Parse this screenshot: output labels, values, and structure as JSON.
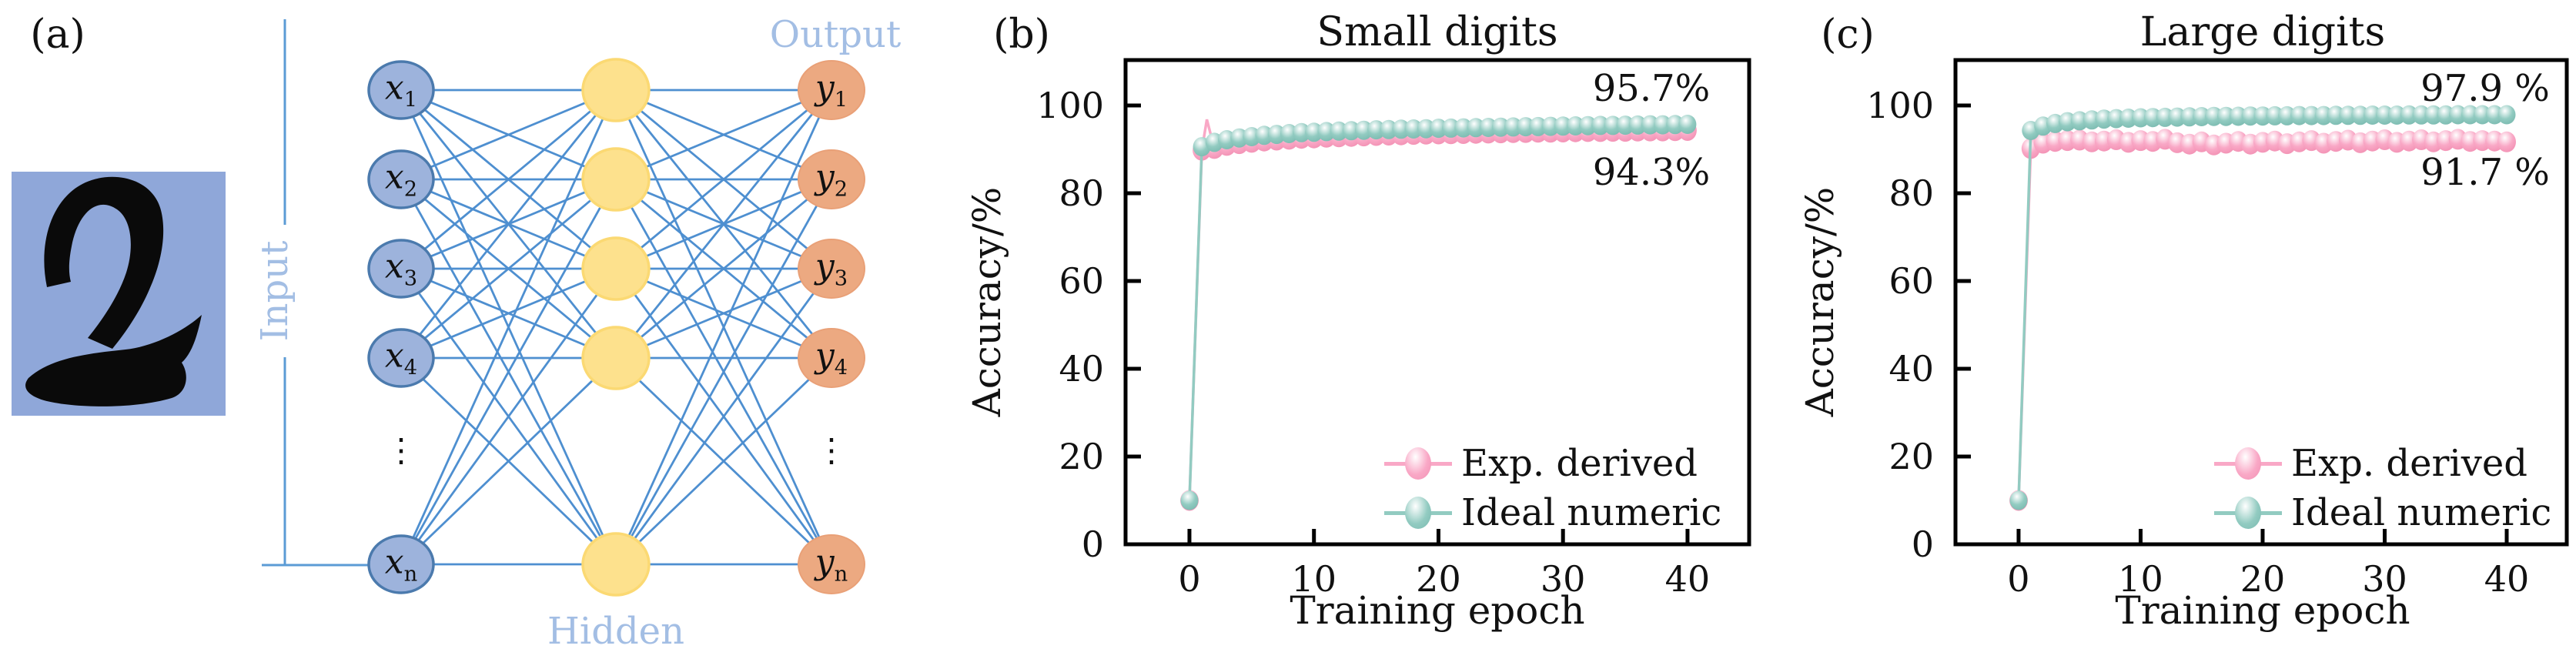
{
  "panel_a": {
    "label": "(a)",
    "digit": "2",
    "ellipsis": "⋮",
    "layer_labels": {
      "input": "Input",
      "hidden": "Hidden",
      "output": "Output"
    },
    "input_nodes": [
      {
        "var": "x",
        "sub": "1"
      },
      {
        "var": "x",
        "sub": "2"
      },
      {
        "var": "x",
        "sub": "3"
      },
      {
        "var": "x",
        "sub": "4"
      },
      {
        "var": "x",
        "sub": "n"
      }
    ],
    "output_nodes": [
      {
        "var": "y",
        "sub": "1"
      },
      {
        "var": "y",
        "sub": "2"
      },
      {
        "var": "y",
        "sub": "3"
      },
      {
        "var": "y",
        "sub": "4"
      },
      {
        "var": "y",
        "sub": "n"
      }
    ],
    "colors": {
      "digit_bg": "#8FA7D9",
      "digit_ink": "#0A0A0A",
      "edge_line": "#4E8FD0",
      "input_fill": "#9DB3DC",
      "input_stroke": "#4B7AAD",
      "hidden_fill": "#FDE18D",
      "hidden_stroke": "#FBD973",
      "output_fill": "#ECA981",
      "output_stroke": "#E9A077",
      "layer_text": "#A3BEE4",
      "bracket_line": "#5B9BD5"
    }
  },
  "chart_data": [
    {
      "panel_label": "(b)",
      "type": "line",
      "title": "Small digits",
      "xlabel": "Training epoch",
      "ylabel": "Accuracy/%",
      "x_ticks": [
        0,
        10,
        20,
        30,
        40
      ],
      "y_ticks": [
        0,
        20,
        40,
        60,
        80,
        100
      ],
      "xlim": [
        -5.13,
        44.95
      ],
      "ylim": [
        0,
        110.35
      ],
      "grid": false,
      "legend_position": "lower right",
      "annotations": [
        {
          "text": "95.7%",
          "series": "Ideal numeric",
          "x": 37,
          "y": 106
        },
        {
          "text": "94.3%",
          "series": "Exp. derived",
          "x": 37,
          "y": 84.5
        }
      ],
      "series": [
        {
          "name": "Exp. derived",
          "color": "#F9A8C6",
          "color_dark": "#F28FB2",
          "x": [
            0,
            1,
            1.4,
            2,
            3,
            4,
            5,
            6,
            7,
            8,
            9,
            10,
            11,
            12,
            13,
            14,
            15,
            16,
            17,
            18,
            19,
            20,
            21,
            22,
            23,
            24,
            25,
            26,
            27,
            28,
            29,
            30,
            31,
            32,
            33,
            34,
            35,
            36,
            37,
            38,
            39,
            40
          ],
          "y": [
            10,
            89.8,
            96.8,
            90.2,
            90.9,
            91.3,
            91.6,
            91.9,
            92.1,
            92.3,
            92.5,
            92.6,
            92.75,
            92.85,
            92.95,
            93.05,
            93.15,
            93.25,
            93.3,
            93.4,
            93.45,
            93.5,
            93.55,
            93.6,
            93.65,
            93.7,
            93.75,
            93.8,
            93.85,
            93.9,
            93.9,
            93.95,
            94.0,
            94.05,
            94.05,
            94.1,
            94.1,
            94.15,
            94.2,
            94.2,
            94.25,
            94.3
          ]
        },
        {
          "name": "Ideal numeric",
          "color": "#92CBC1",
          "color_dark": "#79B9AF",
          "x": [
            0,
            1,
            2,
            3,
            4,
            5,
            6,
            7,
            8,
            9,
            10,
            11,
            12,
            13,
            14,
            15,
            16,
            17,
            18,
            19,
            20,
            21,
            22,
            23,
            24,
            25,
            26,
            27,
            28,
            29,
            30,
            31,
            32,
            33,
            34,
            35,
            36,
            37,
            38,
            39,
            40
          ],
          "y": [
            10,
            90.6,
            91.6,
            92.2,
            92.6,
            92.9,
            93.2,
            93.4,
            93.6,
            93.8,
            93.9,
            94.05,
            94.15,
            94.25,
            94.35,
            94.45,
            94.5,
            94.6,
            94.65,
            94.7,
            94.8,
            94.85,
            94.9,
            94.95,
            95.0,
            95.05,
            95.1,
            95.15,
            95.2,
            95.25,
            95.3,
            95.35,
            95.4,
            95.45,
            95.45,
            95.5,
            95.55,
            95.6,
            95.6,
            95.65,
            95.7
          ]
        }
      ]
    },
    {
      "panel_label": "(c)",
      "type": "line",
      "title": "Large digits",
      "xlabel": "Training epoch",
      "ylabel": "Accuracy/%",
      "x_ticks": [
        0,
        10,
        20,
        30,
        40
      ],
      "y_ticks": [
        0,
        20,
        40,
        60,
        80,
        100
      ],
      "xlim": [
        -5.17,
        44.92
      ],
      "ylim": [
        0,
        110.35
      ],
      "grid": false,
      "legend_position": "lower right",
      "annotations": [
        {
          "text": "97.9 %",
          "series": "Ideal numeric",
          "x": 37,
          "y": 106
        },
        {
          "text": "91.7 %",
          "series": "Exp. derived",
          "x": 37,
          "y": 84.5
        }
      ],
      "series": [
        {
          "name": "Exp. derived",
          "color": "#F9A8C6",
          "color_dark": "#F28FB2",
          "x": [
            0,
            1,
            2,
            3,
            4,
            5,
            6,
            7,
            8,
            9,
            10,
            11,
            12,
            13,
            14,
            15,
            16,
            17,
            18,
            19,
            20,
            21,
            22,
            23,
            24,
            25,
            26,
            27,
            28,
            29,
            30,
            31,
            32,
            33,
            34,
            35,
            36,
            37,
            38,
            39,
            40
          ],
          "y": [
            10,
            90.2,
            91.4,
            91.8,
            92.0,
            92.1,
            91.7,
            91.9,
            92.2,
            91.6,
            92.0,
            91.8,
            92.3,
            91.5,
            91.2,
            91.7,
            91.0,
            91.4,
            91.8,
            91.2,
            91.6,
            91.9,
            91.3,
            91.7,
            92.0,
            91.4,
            91.8,
            92.1,
            91.5,
            91.9,
            92.2,
            91.6,
            91.9,
            92.2,
            91.7,
            92.0,
            92.3,
            91.8,
            92.0,
            91.9,
            91.7
          ]
        },
        {
          "name": "Ideal numeric",
          "color": "#92CBC1",
          "color_dark": "#79B9AF",
          "x": [
            0,
            1,
            2,
            3,
            4,
            5,
            6,
            7,
            8,
            9,
            10,
            11,
            12,
            13,
            14,
            15,
            16,
            17,
            18,
            19,
            20,
            21,
            22,
            23,
            24,
            25,
            26,
            27,
            28,
            29,
            30,
            31,
            32,
            33,
            34,
            35,
            36,
            37,
            38,
            39,
            40
          ],
          "y": [
            10,
            94.3,
            95.3,
            95.9,
            96.3,
            96.5,
            96.7,
            96.9,
            97.0,
            97.1,
            97.2,
            97.25,
            97.3,
            97.35,
            97.4,
            97.45,
            97.5,
            97.5,
            97.55,
            97.6,
            97.6,
            97.65,
            97.65,
            97.7,
            97.7,
            97.7,
            97.75,
            97.75,
            97.75,
            97.8,
            97.8,
            97.8,
            97.85,
            97.85,
            97.85,
            97.85,
            97.9,
            97.9,
            97.9,
            97.9,
            97.9
          ]
        }
      ]
    }
  ]
}
